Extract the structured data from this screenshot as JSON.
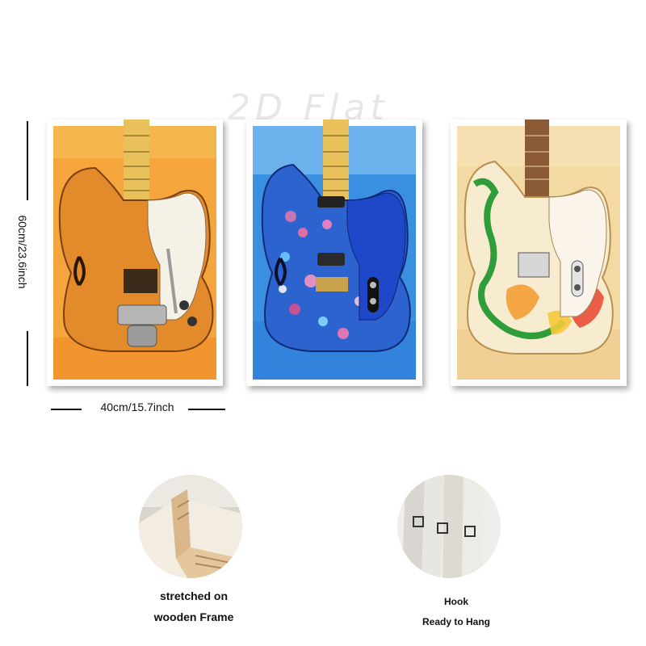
{
  "watermark": "2D Flat",
  "dimensions": {
    "height_label": "60cm/23.6inch",
    "width_label": "40cm/15.7inch"
  },
  "panels": [
    {
      "name": "orange-guitar-print",
      "background": "#f3a43a",
      "body_color": "#e88f2e",
      "guard_color": "#f6f1e6"
    },
    {
      "name": "blue-guitar-print",
      "background": "#3d8fe0",
      "body_color": "#2f6ad1",
      "guard_color": "#1b46c8"
    },
    {
      "name": "cream-guitar-print",
      "background": "#f2d9a6",
      "body_color": "#f7e9c8",
      "guard_color": "#fbf6ee"
    }
  ],
  "features": [
    {
      "caption_line1": "stretched on",
      "caption_line2": "wooden Frame"
    },
    {
      "caption_line1": "Hook",
      "caption_line2": "Ready to Hang"
    }
  ]
}
